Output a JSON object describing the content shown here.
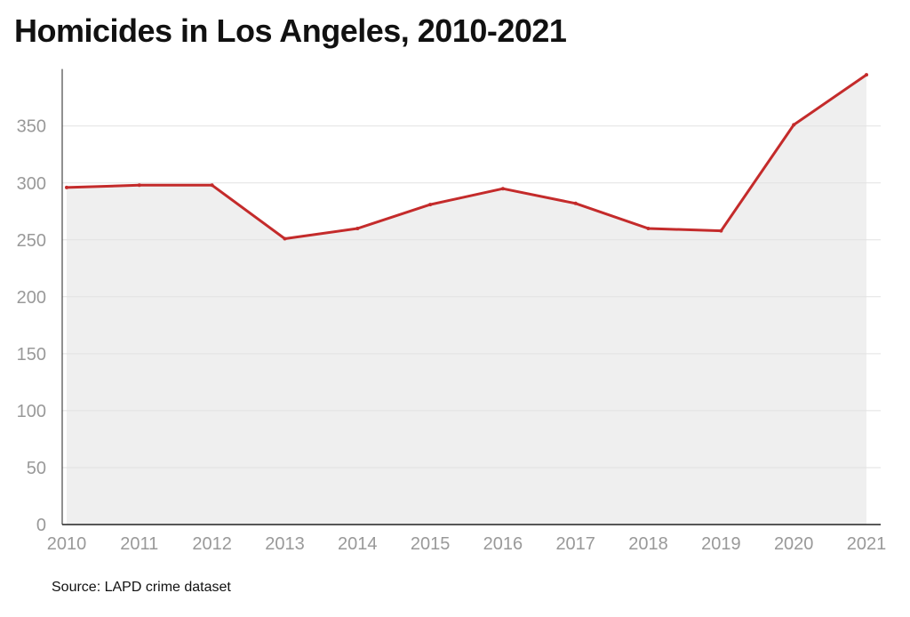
{
  "chart_data": {
    "type": "area",
    "title": "Homicides in Los Angeles, 2010-2021",
    "xlabel": "",
    "ylabel": "",
    "x": [
      "2010",
      "2011",
      "2012",
      "2013",
      "2014",
      "2015",
      "2016",
      "2017",
      "2018",
      "2019",
      "2020",
      "2021"
    ],
    "series": [
      {
        "values": [
          296,
          298,
          298,
          251,
          260,
          281,
          295,
          282,
          260,
          258,
          351,
          395
        ]
      }
    ],
    "yticks": [
      0,
      50,
      100,
      150,
      200,
      250,
      300,
      350
    ],
    "ylim": [
      0,
      400
    ],
    "grid": true,
    "legend": "none",
    "colors": {
      "line": "#c42b2b",
      "area": "#efefef",
      "grid": "#e2e2e2",
      "axis": "#222222",
      "tick_text": "#999999"
    }
  },
  "source_note": "Source: LAPD crime dataset"
}
